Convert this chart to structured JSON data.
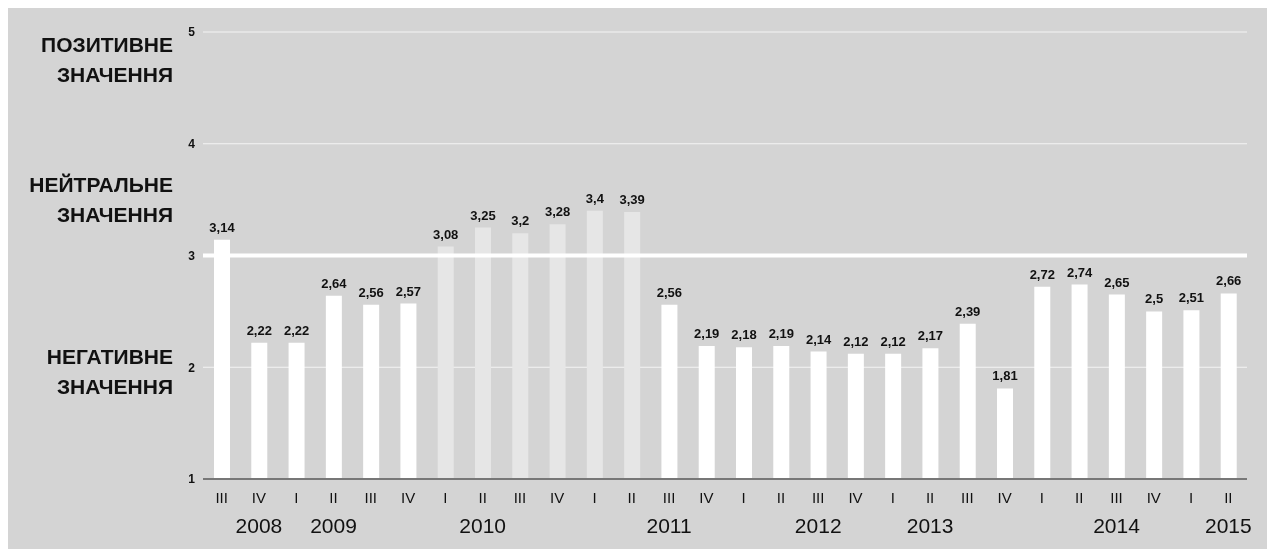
{
  "chart_data": {
    "type": "bar",
    "categories": [
      "III",
      "IV\n2008",
      "I",
      "II\n2009",
      "III",
      "IV",
      "I",
      "II\n2010",
      "III",
      "IV",
      "I",
      "II",
      "III\n2011",
      "IV",
      "I",
      "II",
      "III\n2012",
      "IV",
      "I",
      "II\n2013",
      "III",
      "IV",
      "I",
      "II",
      "III\n2014",
      "IV",
      "I",
      "II\n2015"
    ],
    "values": [
      3.14,
      2.22,
      2.22,
      2.64,
      2.56,
      2.57,
      3.08,
      3.25,
      3.2,
      3.28,
      3.4,
      3.39,
      2.56,
      2.19,
      2.18,
      2.19,
      2.14,
      2.12,
      2.12,
      2.17,
      2.39,
      1.81,
      2.72,
      2.74,
      2.65,
      2.5,
      2.51,
      2.66
    ],
    "colors": [
      "#ffffff",
      "#ffffff",
      "#ffffff",
      "#ffffff",
      "#ffffff",
      "#ffffff",
      "#e6e6e6",
      "#e6e6e6",
      "#e6e6e6",
      "#e6e6e6",
      "#e6e6e6",
      "#e6e6e6",
      "#ffffff",
      "#ffffff",
      "#ffffff",
      "#ffffff",
      "#ffffff",
      "#ffffff",
      "#ffffff",
      "#ffffff",
      "#ffffff",
      "#ffffff",
      "#ffffff",
      "#ffffff",
      "#ffffff",
      "#ffffff",
      "#ffffff",
      "#ffffff"
    ],
    "value_labels": [
      "3,14",
      "2,22",
      "2,22",
      "2,64",
      "2,56",
      "2,57",
      "3,08",
      "3,25",
      "3,2",
      "3,28",
      "3,4",
      "3,39",
      "2,56",
      "2,19",
      "2,18",
      "2,19",
      "2,14",
      "2,12",
      "2,12",
      "2,17",
      "2,39",
      "1,81",
      "2,72",
      "2,74",
      "2,65",
      "2,5",
      "2,51",
      "2,66"
    ],
    "ylim": [
      1,
      5
    ],
    "yticks": [
      1,
      2,
      3,
      4,
      5
    ],
    "grid": "y",
    "ref_lines": [
      {
        "axis": "y",
        "value": 3,
        "color": "#ffffff"
      }
    ],
    "annotations": [
      "ПОЗИТИВНЕ ЗНАЧЕННЯ",
      "НЕЙТРАЛЬНЕ ЗНАЧЕННЯ",
      "НЕГАТИВНЕ ЗНАЧЕННЯ"
    ]
  }
}
